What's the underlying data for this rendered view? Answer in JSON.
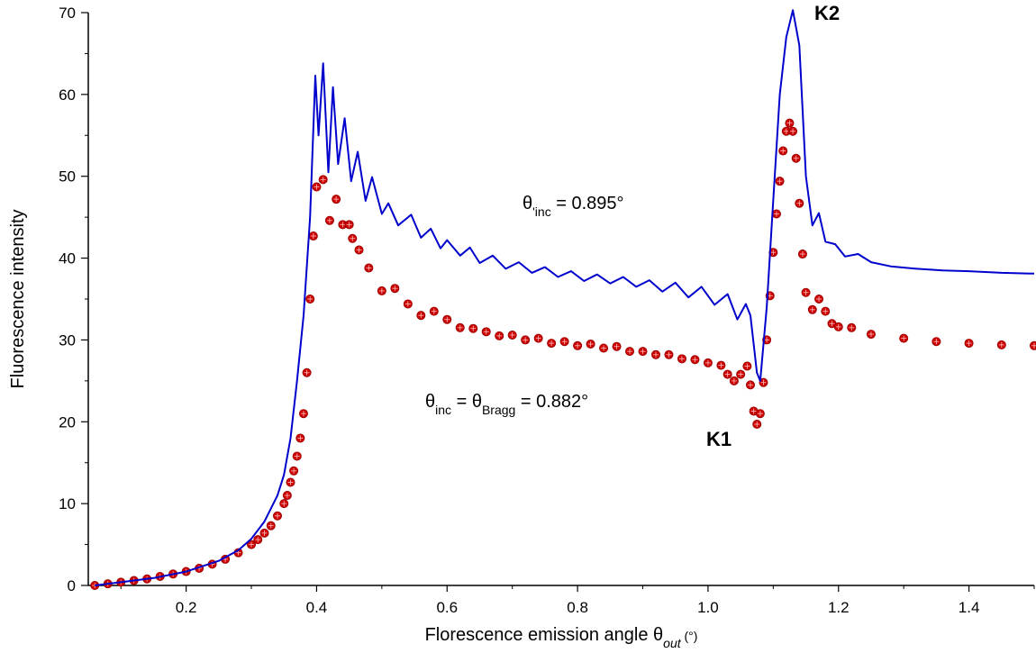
{
  "chart_data": {
    "type": "line",
    "xlabel_text": "Florescence emission angle θ",
    "xlabel_sub": "out",
    "xlabel_unit": " (°)",
    "ylabel": "Fluorescence intensity",
    "xlim": [
      0.05,
      1.5
    ],
    "ylim": [
      0,
      70
    ],
    "xticks": [
      "0.2",
      "0.4",
      "0.6",
      "0.8",
      "1.0",
      "1.2",
      "1.4"
    ],
    "yticks": [
      "0",
      "10",
      "20",
      "30",
      "40",
      "50",
      "60",
      "70"
    ],
    "grid": false,
    "annotations": {
      "blue_label_main": "θ",
      "blue_label_sub": "'inc",
      "blue_label_rest": " = 0.895°",
      "red_label_main": "θ",
      "red_label_sub1": "inc",
      "red_label_mid": " = θ",
      "red_label_sub2": "Bragg",
      "red_label_rest": " = 0.882°",
      "k1": "K1",
      "k2": "K2"
    },
    "series": [
      {
        "color": "#0000cc",
        "style": "line",
        "points": [
          [
            0.06,
            0.0
          ],
          [
            0.1,
            0.4
          ],
          [
            0.15,
            0.9
          ],
          [
            0.2,
            1.7
          ],
          [
            0.25,
            3.0
          ],
          [
            0.28,
            4.3
          ],
          [
            0.3,
            5.7
          ],
          [
            0.32,
            7.8
          ],
          [
            0.34,
            11.0
          ],
          [
            0.35,
            13.5
          ],
          [
            0.36,
            18.0
          ],
          [
            0.37,
            25.0
          ],
          [
            0.38,
            33.0
          ],
          [
            0.39,
            45.0
          ],
          [
            0.398,
            62.3
          ],
          [
            0.403,
            55.0
          ],
          [
            0.41,
            63.8
          ],
          [
            0.418,
            50.5
          ],
          [
            0.425,
            60.9
          ],
          [
            0.433,
            51.5
          ],
          [
            0.443,
            57.1
          ],
          [
            0.453,
            49.4
          ],
          [
            0.463,
            53.0
          ],
          [
            0.475,
            47.0
          ],
          [
            0.485,
            49.9
          ],
          [
            0.5,
            45.4
          ],
          [
            0.51,
            46.7
          ],
          [
            0.525,
            44.0
          ],
          [
            0.545,
            45.3
          ],
          [
            0.56,
            42.5
          ],
          [
            0.575,
            43.6
          ],
          [
            0.59,
            41.2
          ],
          [
            0.6,
            42.2
          ],
          [
            0.62,
            40.3
          ],
          [
            0.635,
            41.3
          ],
          [
            0.65,
            39.4
          ],
          [
            0.67,
            40.3
          ],
          [
            0.69,
            38.7
          ],
          [
            0.71,
            39.5
          ],
          [
            0.73,
            38.2
          ],
          [
            0.75,
            38.9
          ],
          [
            0.77,
            37.7
          ],
          [
            0.79,
            38.4
          ],
          [
            0.81,
            37.2
          ],
          [
            0.83,
            38.0
          ],
          [
            0.85,
            36.9
          ],
          [
            0.87,
            37.7
          ],
          [
            0.89,
            36.5
          ],
          [
            0.91,
            37.3
          ],
          [
            0.93,
            35.9
          ],
          [
            0.95,
            37.0
          ],
          [
            0.97,
            35.2
          ],
          [
            0.99,
            36.5
          ],
          [
            1.01,
            34.3
          ],
          [
            1.03,
            35.6
          ],
          [
            1.045,
            32.5
          ],
          [
            1.058,
            34.4
          ],
          [
            1.065,
            33.0
          ],
          [
            1.075,
            26.0
          ],
          [
            1.08,
            25.0
          ],
          [
            1.09,
            34.0
          ],
          [
            1.1,
            47.0
          ],
          [
            1.11,
            60.0
          ],
          [
            1.12,
            67.0
          ],
          [
            1.13,
            70.3
          ],
          [
            1.14,
            66.0
          ],
          [
            1.15,
            50.0
          ],
          [
            1.16,
            44.0
          ],
          [
            1.17,
            45.5
          ],
          [
            1.18,
            42.0
          ],
          [
            1.195,
            41.7
          ],
          [
            1.21,
            40.2
          ],
          [
            1.23,
            40.5
          ],
          [
            1.25,
            39.5
          ],
          [
            1.28,
            39.0
          ],
          [
            1.32,
            38.7
          ],
          [
            1.36,
            38.5
          ],
          [
            1.4,
            38.4
          ],
          [
            1.45,
            38.2
          ],
          [
            1.5,
            38.1
          ]
        ]
      },
      {
        "color": "#cc0000",
        "style": "markers",
        "points": [
          [
            0.06,
            0.0
          ],
          [
            0.08,
            0.2
          ],
          [
            0.1,
            0.4
          ],
          [
            0.12,
            0.6
          ],
          [
            0.14,
            0.8
          ],
          [
            0.16,
            1.1
          ],
          [
            0.18,
            1.4
          ],
          [
            0.2,
            1.7
          ],
          [
            0.22,
            2.1
          ],
          [
            0.24,
            2.6
          ],
          [
            0.26,
            3.2
          ],
          [
            0.28,
            4.0
          ],
          [
            0.3,
            5.0
          ],
          [
            0.31,
            5.6
          ],
          [
            0.32,
            6.4
          ],
          [
            0.33,
            7.3
          ],
          [
            0.34,
            8.5
          ],
          [
            0.35,
            10.0
          ],
          [
            0.355,
            11.0
          ],
          [
            0.36,
            12.6
          ],
          [
            0.365,
            14.0
          ],
          [
            0.37,
            15.8
          ],
          [
            0.375,
            18.0
          ],
          [
            0.38,
            21.0
          ],
          [
            0.385,
            26.0
          ],
          [
            0.39,
            35.0
          ],
          [
            0.395,
            42.7
          ],
          [
            0.4,
            48.7
          ],
          [
            0.41,
            49.6
          ],
          [
            0.42,
            44.6
          ],
          [
            0.43,
            47.2
          ],
          [
            0.44,
            44.1
          ],
          [
            0.45,
            44.1
          ],
          [
            0.455,
            42.4
          ],
          [
            0.465,
            41.0
          ],
          [
            0.48,
            38.8
          ],
          [
            0.5,
            36.0
          ],
          [
            0.52,
            36.3
          ],
          [
            0.54,
            34.4
          ],
          [
            0.56,
            33.0
          ],
          [
            0.58,
            33.5
          ],
          [
            0.6,
            32.5
          ],
          [
            0.62,
            31.5
          ],
          [
            0.64,
            31.4
          ],
          [
            0.66,
            31.0
          ],
          [
            0.68,
            30.5
          ],
          [
            0.7,
            30.6
          ],
          [
            0.72,
            30.0
          ],
          [
            0.74,
            30.2
          ],
          [
            0.76,
            29.6
          ],
          [
            0.78,
            29.8
          ],
          [
            0.8,
            29.3
          ],
          [
            0.82,
            29.5
          ],
          [
            0.84,
            29.0
          ],
          [
            0.86,
            29.2
          ],
          [
            0.88,
            28.6
          ],
          [
            0.9,
            28.6
          ],
          [
            0.92,
            28.2
          ],
          [
            0.94,
            28.2
          ],
          [
            0.96,
            27.7
          ],
          [
            0.98,
            27.6
          ],
          [
            1.0,
            27.2
          ],
          [
            1.02,
            26.9
          ],
          [
            1.03,
            25.8
          ],
          [
            1.04,
            25.0
          ],
          [
            1.05,
            25.8
          ],
          [
            1.06,
            26.8
          ],
          [
            1.065,
            24.5
          ],
          [
            1.07,
            21.3
          ],
          [
            1.075,
            19.7
          ],
          [
            1.08,
            21.0
          ],
          [
            1.085,
            24.8
          ],
          [
            1.09,
            30.0
          ],
          [
            1.095,
            35.4
          ],
          [
            1.1,
            40.7
          ],
          [
            1.105,
            45.4
          ],
          [
            1.11,
            49.4
          ],
          [
            1.115,
            53.1
          ],
          [
            1.12,
            55.5
          ],
          [
            1.125,
            56.5
          ],
          [
            1.13,
            55.5
          ],
          [
            1.135,
            52.2
          ],
          [
            1.14,
            46.7
          ],
          [
            1.145,
            40.5
          ],
          [
            1.15,
            35.8
          ],
          [
            1.16,
            33.7
          ],
          [
            1.17,
            35.0
          ],
          [
            1.18,
            33.5
          ],
          [
            1.19,
            32.0
          ],
          [
            1.2,
            31.6
          ],
          [
            1.22,
            31.5
          ],
          [
            1.25,
            30.7
          ],
          [
            1.3,
            30.2
          ],
          [
            1.35,
            29.8
          ],
          [
            1.4,
            29.6
          ],
          [
            1.45,
            29.4
          ],
          [
            1.5,
            29.3
          ]
        ]
      }
    ]
  }
}
